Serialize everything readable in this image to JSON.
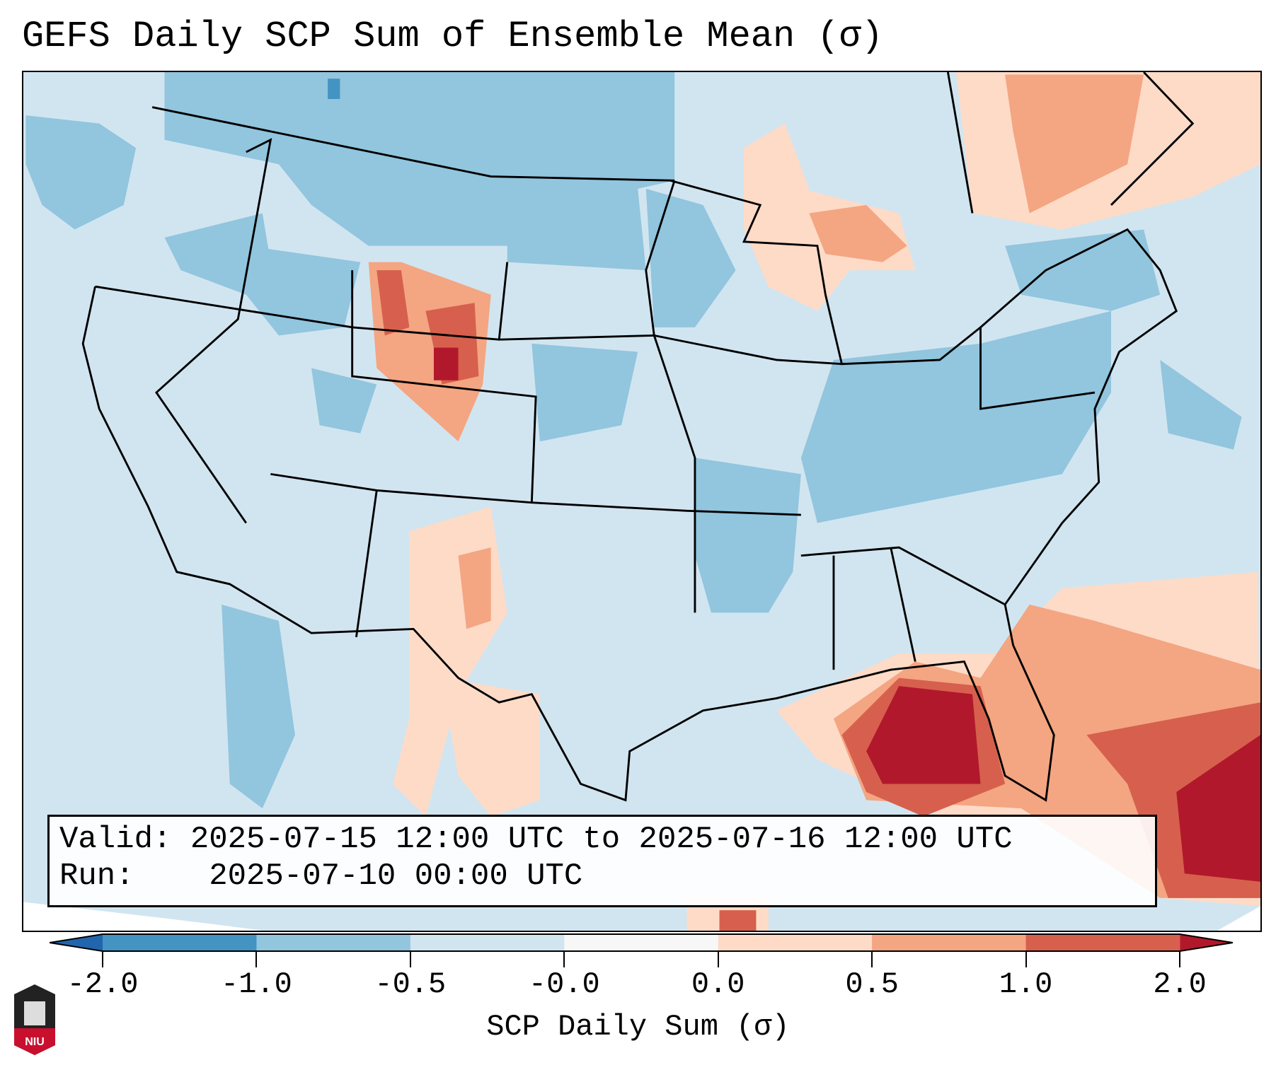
{
  "title": "GEFS Daily SCP Sum of Ensemble Mean (σ)",
  "info": {
    "valid_label": "Valid:",
    "valid_value": "2025-07-15 12:00 UTC to 2025-07-16 12:00 UTC",
    "run_label": "Run:",
    "run_value": "2025-07-10 00:00 UTC"
  },
  "colorbar": {
    "label": "SCP Daily Sum (σ)",
    "ticks": [
      "-2.0",
      "-1.0",
      "-0.5",
      "-0.0",
      "0.0",
      "0.5",
      "1.0",
      "2.0"
    ],
    "colors": [
      "#4393c3",
      "#92c5de",
      "#d1e5f0",
      "#f7f7f7",
      "#fddbc7",
      "#f4a582",
      "#d6604d"
    ],
    "extend_low_color": "#2166ac",
    "extend_high_color": "#b2182b"
  },
  "logo": {
    "text": "NIU"
  }
}
